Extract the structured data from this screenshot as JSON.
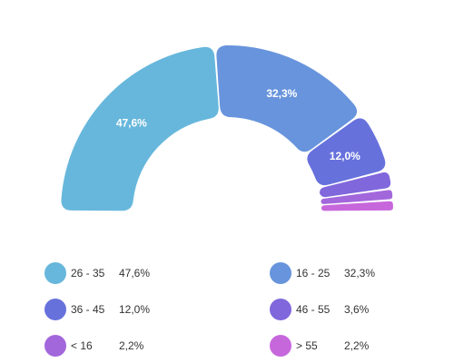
{
  "chart_data": {
    "type": "pie",
    "subtype": "semi-donut",
    "start_angle_deg": -90,
    "end_angle_deg": 90,
    "legend_position": "bottom",
    "slices": [
      {
        "name": "26 - 35",
        "value": 47.6,
        "label": "47,6%",
        "legend_value": "47,6%",
        "color": "#67b7dc"
      },
      {
        "name": "16 - 25",
        "value": 32.3,
        "label": "32,3%",
        "legend_value": "32,3%",
        "color": "#6794dc"
      },
      {
        "name": "36 - 45",
        "value": 12.0,
        "label": "12,0%",
        "legend_value": "12,0%",
        "color": "#6771dc"
      },
      {
        "name": "46 - 55",
        "value": 3.6,
        "label": "",
        "legend_value": "3,6%",
        "color": "#8067dc"
      },
      {
        "name": "< 16",
        "value": 2.2,
        "label": "",
        "legend_value": "2,2%",
        "color": "#a367dc"
      },
      {
        "name": "> 55",
        "value": 2.2,
        "label": "",
        "legend_value": "2,2%",
        "color": "#c767dc"
      }
    ]
  }
}
